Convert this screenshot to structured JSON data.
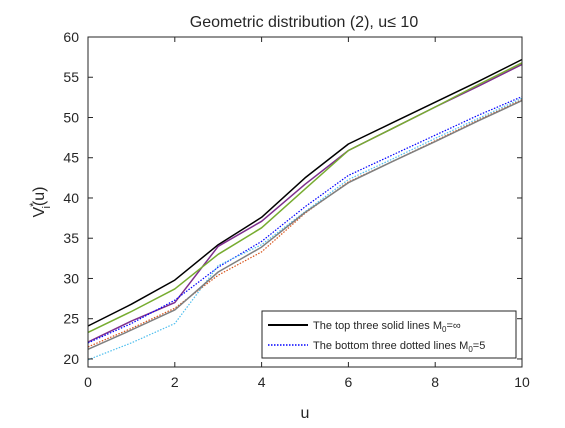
{
  "chart_data": {
    "type": "line",
    "title": "Geometric distribution (2), u≤ 10",
    "xlabel": "u",
    "ylabel": {
      "main": "V",
      "sup": "*",
      "sub": "i",
      "tail": "(u)"
    },
    "xlim": [
      0,
      10
    ],
    "ylim": [
      19,
      60
    ],
    "xticks": [
      0,
      2,
      4,
      6,
      8,
      10
    ],
    "yticks": [
      20,
      25,
      30,
      35,
      40,
      45,
      50,
      55,
      60
    ],
    "grid": false,
    "legend_position": "bottom-right",
    "legend": [
      {
        "text": "The top three solid lines M",
        "sub": "0",
        "tail": "=∞",
        "color": "#000000",
        "dash": "solid"
      },
      {
        "text": "The bottom three dotted lines M",
        "sub": "0",
        "tail": "=5",
        "color": "#0000ff",
        "dash": "dotted"
      }
    ],
    "x": [
      0,
      1,
      2,
      3,
      4,
      5,
      6,
      7,
      8,
      9,
      10
    ],
    "series": [
      {
        "color": "#000000",
        "dash": "solid",
        "values": [
          24.1,
          26.8,
          29.8,
          34.2,
          37.6,
          42.5,
          46.7,
          49.3,
          51.9,
          54.5,
          57.2
        ]
      },
      {
        "color": "#7e2f8e",
        "dash": "solid",
        "values": [
          22.1,
          24.7,
          27.0,
          34.0,
          37.1,
          41.7,
          45.9,
          48.6,
          51.3,
          53.9,
          56.6
        ]
      },
      {
        "color": "#77ac30",
        "dash": "solid",
        "values": [
          23.3,
          25.9,
          28.7,
          33.0,
          36.3,
          41.1,
          45.9,
          48.6,
          51.3,
          54.1,
          56.8
        ]
      },
      {
        "color": "#0000ff",
        "dash": "dotted",
        "values": [
          22.0,
          24.4,
          27.3,
          31.4,
          34.6,
          38.9,
          42.8,
          45.3,
          47.8,
          50.3,
          52.6
        ]
      },
      {
        "color": "#d95319",
        "dash": "dotted",
        "values": [
          21.5,
          23.8,
          26.3,
          30.4,
          33.3,
          38.1,
          42.0,
          44.5,
          47.1,
          49.7,
          52.2
        ]
      },
      {
        "color": "#4dbeee",
        "dash": "dotted",
        "values": [
          19.9,
          22.0,
          24.4,
          31.6,
          34.2,
          38.3,
          42.3,
          44.8,
          47.4,
          49.9,
          52.4
        ]
      },
      {
        "color": "#808080",
        "dash": "solid",
        "values": [
          21.2,
          23.6,
          26.1,
          30.8,
          33.9,
          38.2,
          41.9,
          44.5,
          47.0,
          49.6,
          52.1
        ]
      }
    ]
  }
}
